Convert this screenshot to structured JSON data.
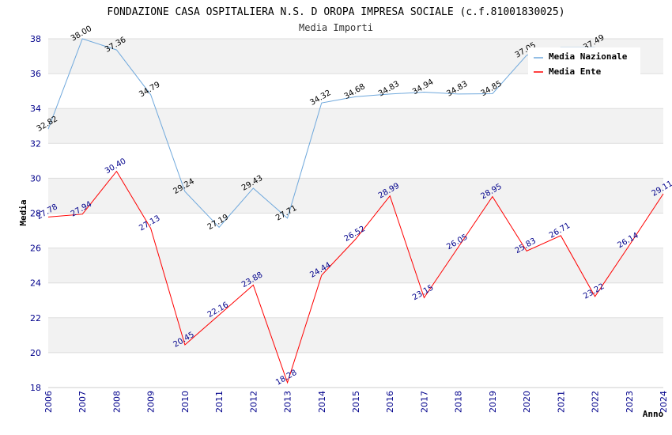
{
  "chart_data": {
    "type": "line",
    "title": "FONDAZIONE CASA OSPITALIERA N.S. D OROPA IMPRESA SOCIALE (c.f.81001830025)",
    "subtitle": "Media Importi",
    "xlabel": "Anno",
    "ylabel": "Media",
    "ylim": [
      18,
      38
    ],
    "yticks": [
      18,
      20,
      22,
      24,
      26,
      28,
      30,
      32,
      34,
      36,
      38
    ],
    "grid": true,
    "legend_position": "top-right",
    "x": [
      2006,
      2007,
      2008,
      2009,
      2010,
      2011,
      2012,
      2013,
      2014,
      2015,
      2016,
      2017,
      2018,
      2019,
      2020,
      2021,
      2022,
      2023,
      2024
    ],
    "series": [
      {
        "name": "Media Nazionale",
        "color": "#6fa8dc",
        "values": [
          32.82,
          38.0,
          37.36,
          34.79,
          29.24,
          27.19,
          29.43,
          27.71,
          34.32,
          34.68,
          34.83,
          34.94,
          34.83,
          34.85,
          37.05,
          37.49,
          37.49,
          null,
          null
        ],
        "labels": [
          "32.82",
          "38.00",
          "37.36",
          "34.79",
          "29.24",
          "27.19",
          "29.43",
          "27.71",
          "34.32",
          "34.68",
          "34.83",
          "34.94",
          "34.83",
          "34.85",
          "37.05",
          "",
          "37.49",
          "",
          ""
        ]
      },
      {
        "name": "Media Ente",
        "color": "#ff0000",
        "values": [
          27.78,
          27.94,
          30.4,
          27.13,
          20.45,
          22.16,
          23.88,
          18.28,
          24.44,
          26.52,
          28.99,
          23.15,
          26.05,
          28.95,
          25.83,
          26.71,
          23.22,
          26.14,
          29.11
        ],
        "labels": [
          "27.78",
          "27.94",
          "30.40",
          "27.13",
          "20.45",
          "22.16",
          "23.88",
          "18.28",
          "24.44",
          "26.52",
          "28.99",
          "23.15",
          "26.05",
          "28.95",
          "25.83",
          "26.71",
          "23.22",
          "26.14",
          "29.11"
        ]
      }
    ]
  },
  "legend": {
    "naz_label": "Media Nazionale",
    "ente_label": "Media Ente"
  }
}
